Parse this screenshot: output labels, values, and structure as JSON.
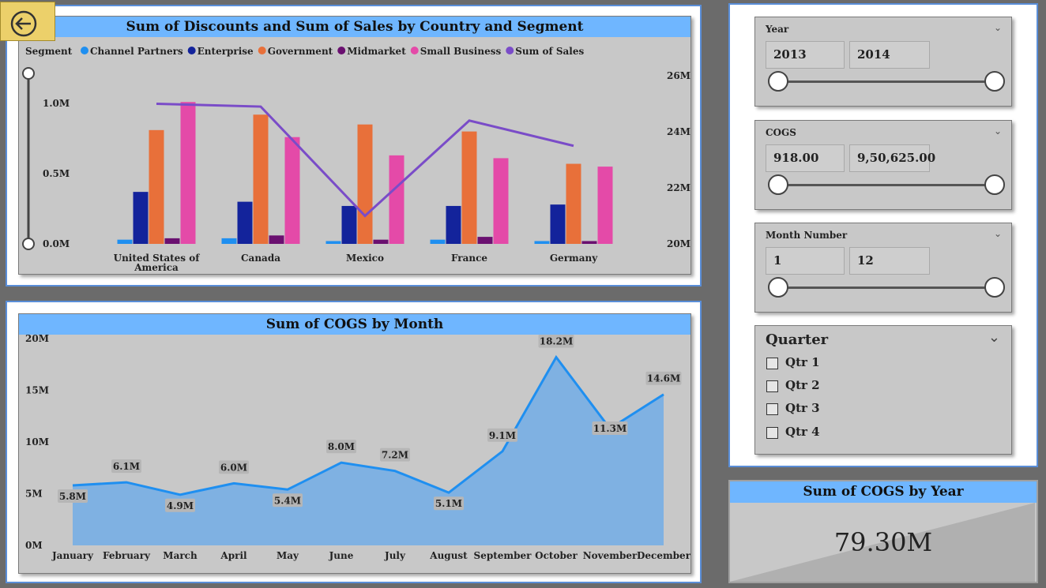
{
  "top_chart": {
    "title": "Sum of Discounts and Sum of Sales by Country and Segment",
    "legend_title": "Segment",
    "legend": [
      {
        "label": "Channel Partners",
        "color": "#1f8ff0"
      },
      {
        "label": "Enterprise",
        "color": "#13239b"
      },
      {
        "label": "Government",
        "color": "#e8703a"
      },
      {
        "label": "Midmarket",
        "color": "#6a1070"
      },
      {
        "label": "Small Business",
        "color": "#e44aa8"
      },
      {
        "label": "Sum of  Sales",
        "color": "#7a4cc8"
      }
    ],
    "left_axis_ticks": [
      "1.0M",
      "0.5M",
      "0.0M"
    ],
    "right_axis_ticks": [
      "26M",
      "24M",
      "22M",
      "20M"
    ],
    "countries": [
      "United States of America",
      "Canada",
      "Mexico",
      "France",
      "Germany"
    ]
  },
  "bottom_chart": {
    "title": "Sum of COGS by Month",
    "y_ticks": [
      "20M",
      "15M",
      "10M",
      "5M",
      "0M"
    ],
    "months": [
      "January",
      "February",
      "March",
      "April",
      "May",
      "June",
      "July",
      "August",
      "September",
      "October",
      "November",
      "December"
    ],
    "data_labels": [
      "5.8M",
      "6.1M",
      "4.9M",
      "6.0M",
      "5.4M",
      "8.0M",
      "7.2M",
      "5.1M",
      "9.1M",
      "18.2M",
      "11.3M",
      "14.6M"
    ]
  },
  "chart_data": [
    {
      "type": "bar",
      "title": "Sum of Discounts and Sum of Sales by Country and Segment",
      "categories": [
        "United States of America",
        "Canada",
        "Mexico",
        "France",
        "Germany"
      ],
      "ylim": [
        0,
        1.0
      ],
      "y2lim": [
        20,
        26
      ],
      "series": [
        {
          "name": "Channel Partners",
          "axis": "left",
          "values": [
            0.03,
            0.04,
            0.02,
            0.03,
            0.02
          ]
        },
        {
          "name": "Enterprise",
          "axis": "left",
          "values": [
            0.37,
            0.3,
            0.27,
            0.27,
            0.28
          ]
        },
        {
          "name": "Government",
          "axis": "left",
          "values": [
            0.81,
            0.92,
            0.85,
            0.8,
            0.57
          ]
        },
        {
          "name": "Midmarket",
          "axis": "left",
          "values": [
            0.04,
            0.06,
            0.03,
            0.05,
            0.02
          ]
        },
        {
          "name": "Small Business",
          "axis": "left",
          "values": [
            1.01,
            0.76,
            0.63,
            0.61,
            0.55
          ]
        },
        {
          "name": "Sum of  Sales",
          "axis": "right",
          "type": "line",
          "values": [
            25.0,
            24.9,
            21.0,
            24.4,
            23.5
          ]
        }
      ]
    },
    {
      "type": "area",
      "title": "Sum of COGS by Month",
      "x": [
        "January",
        "February",
        "March",
        "April",
        "May",
        "June",
        "July",
        "August",
        "September",
        "October",
        "November",
        "December"
      ],
      "values": [
        5.8,
        6.1,
        4.9,
        6.0,
        5.4,
        8.0,
        7.2,
        5.1,
        9.1,
        18.2,
        11.3,
        14.6
      ],
      "ylim": [
        0,
        20
      ]
    }
  ],
  "slicers": {
    "year": {
      "title": "Year",
      "min": "2013",
      "max": "2014"
    },
    "cogs": {
      "title": "COGS",
      "min": "918.00",
      "max": "9,50,625.00"
    },
    "month": {
      "title": "Month Number",
      "min": "1",
      "max": "12"
    },
    "quarter": {
      "title": "Quarter",
      "items": [
        "Qtr 1",
        "Qtr 2",
        "Qtr 3",
        "Qtr 4"
      ]
    }
  },
  "card": {
    "title": "Sum of COGS by Year",
    "value": "79.30M"
  },
  "colors": {
    "title_bar": "#6fb6ff",
    "area_fill": "#7fb1e2",
    "area_line": "#1f8ff0",
    "sales_line": "#7a4cc8",
    "back_button": "#ecd06a"
  }
}
